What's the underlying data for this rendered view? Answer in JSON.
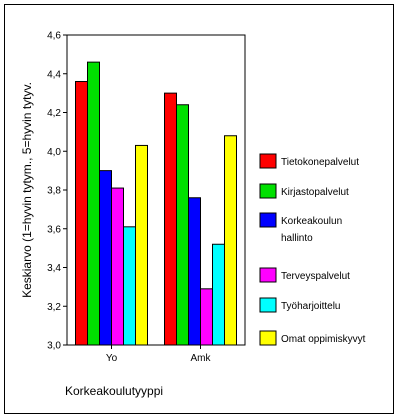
{
  "chart_data": {
    "type": "bar",
    "title": "",
    "ylabel": "Keskiarvo (1=hyvin tytym., 5=hyvin tytyv.",
    "xlabel": "Korkeakoulutyyppi",
    "ylim": [
      3.0,
      4.6
    ],
    "yticks": [
      "3,0",
      "3,2",
      "3,4",
      "3,6",
      "3,8",
      "4,0",
      "4,2",
      "4,4",
      "4,6"
    ],
    "ytick_values": [
      3.0,
      3.2,
      3.4,
      3.6,
      3.8,
      4.0,
      4.2,
      4.4,
      4.6
    ],
    "grid": false,
    "legend_position": "right",
    "categories": [
      "Yo",
      "Amk"
    ],
    "series": [
      {
        "name": "Tietokonepalvelut",
        "color": "#ff0000",
        "values": [
          4.36,
          4.3
        ]
      },
      {
        "name": "Kirjastopalvelut",
        "color": "#00e000",
        "values": [
          4.46,
          4.24
        ]
      },
      {
        "name": "Korkeakoulun hallinto",
        "color": "#0000ff",
        "values": [
          3.9,
          3.76
        ]
      },
      {
        "name": "Terveyspalvelut",
        "color": "#ff00ff",
        "values": [
          3.81,
          3.29
        ]
      },
      {
        "name": "Työharjoittelu",
        "color": "#00ffff",
        "values": [
          3.61,
          3.52
        ]
      },
      {
        "name": "Omat oppimiskyvyt",
        "color": "#ffff00",
        "values": [
          4.03,
          4.08
        ]
      }
    ]
  }
}
